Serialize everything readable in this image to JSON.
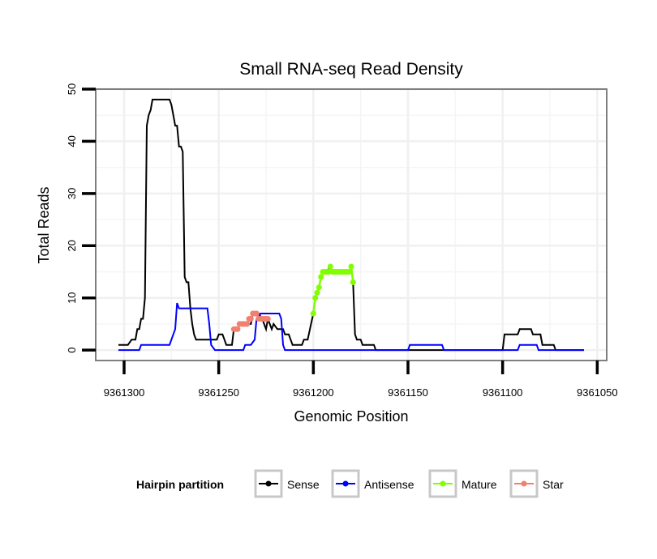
{
  "chart_data": {
    "type": "line",
    "title": "Small RNA-seq Read Density",
    "xlabel": "Genomic Position",
    "ylabel": "Total Reads",
    "xlim": [
      9361315,
      9361045
    ],
    "ylim": [
      -2,
      50
    ],
    "x_ticks": [
      9361300,
      9361250,
      9361200,
      9361150,
      9361100,
      9361050
    ],
    "x_tick_labels": [
      "9361300",
      "9361250",
      "9361200",
      "9361150",
      "9361100",
      "9361050"
    ],
    "y_ticks": [
      0,
      10,
      20,
      30,
      40,
      50
    ],
    "y_tick_labels": [
      "0",
      "10",
      "20",
      "30",
      "40",
      "50"
    ],
    "grid": true,
    "legend": {
      "title": "Hairpin partition",
      "position": "bottom",
      "entries": [
        {
          "label": "Sense",
          "color": "#000000"
        },
        {
          "label": "Antisense",
          "color": "#0000ff"
        },
        {
          "label": "Mature",
          "color": "#7fff00"
        },
        {
          "label": "Star",
          "color": "#f08070"
        }
      ]
    },
    "series": [
      {
        "name": "Sense",
        "color": "#000000",
        "style": "line",
        "points": [
          [
            9361303,
            1
          ],
          [
            9361298,
            1
          ],
          [
            9361296,
            2
          ],
          [
            9361294,
            2
          ],
          [
            9361293,
            4
          ],
          [
            9361292,
            4
          ],
          [
            9361291,
            6
          ],
          [
            9361290,
            6
          ],
          [
            9361289,
            10
          ],
          [
            9361288,
            43
          ],
          [
            9361287,
            45
          ],
          [
            9361286,
            46
          ],
          [
            9361285,
            48
          ],
          [
            9361276,
            48
          ],
          [
            9361275,
            47
          ],
          [
            9361274,
            45
          ],
          [
            9361273,
            43
          ],
          [
            9361272,
            43
          ],
          [
            9361271,
            39
          ],
          [
            9361270,
            39
          ],
          [
            9361269,
            38
          ],
          [
            9361268,
            14
          ],
          [
            9361267,
            13
          ],
          [
            9361266,
            13
          ],
          [
            9361265,
            8
          ],
          [
            9361264,
            5
          ],
          [
            9361263,
            3
          ],
          [
            9361262,
            2
          ],
          [
            9361251,
            2
          ],
          [
            9361250,
            3
          ],
          [
            9361248,
            3
          ],
          [
            9361247,
            2
          ],
          [
            9361246,
            1
          ],
          [
            9361243,
            1
          ],
          [
            9361242,
            4
          ],
          [
            9361240,
            4
          ],
          [
            9361239,
            5
          ],
          [
            9361233,
            5
          ],
          [
            9361232,
            7
          ],
          [
            9361229,
            7
          ],
          [
            9361227,
            6
          ],
          [
            9361225,
            4
          ],
          [
            9361224,
            6
          ],
          [
            9361222,
            4
          ],
          [
            9361221,
            5
          ],
          [
            9361219,
            4
          ],
          [
            9361216,
            4
          ],
          [
            9361215,
            3
          ],
          [
            9361213,
            3
          ],
          [
            9361212,
            2
          ],
          [
            9361211,
            1
          ],
          [
            9361208,
            1
          ],
          [
            9361206,
            1
          ],
          [
            9361205,
            2
          ],
          [
            9361203,
            2
          ],
          [
            9361200,
            7
          ],
          [
            9361199,
            10
          ],
          [
            9361198,
            11
          ],
          [
            9361197,
            12
          ],
          [
            9361196,
            14
          ],
          [
            9361195,
            15
          ],
          [
            9361194,
            15
          ],
          [
            9361193,
            15
          ],
          [
            9361191,
            16
          ],
          [
            9361190,
            15
          ],
          [
            9361186,
            15
          ],
          [
            9361183,
            15
          ],
          [
            9361182,
            15
          ],
          [
            9361181,
            15
          ],
          [
            9361180,
            16
          ],
          [
            9361179,
            13
          ],
          [
            9361178,
            3
          ],
          [
            9361177,
            2
          ],
          [
            9361175,
            2
          ],
          [
            9361174,
            1
          ],
          [
            9361168,
            1
          ],
          [
            9361167,
            0
          ],
          [
            9361100,
            0
          ],
          [
            9361099,
            3
          ],
          [
            9361092,
            3
          ],
          [
            9361091,
            4
          ],
          [
            9361085,
            4
          ],
          [
            9361084,
            3
          ],
          [
            9361080,
            3
          ],
          [
            9361079,
            1
          ],
          [
            9361073,
            1
          ],
          [
            9361072,
            0
          ],
          [
            9361057,
            0
          ]
        ]
      },
      {
        "name": "Antisense",
        "color": "#0000ff",
        "style": "line",
        "points": [
          [
            9361303,
            0
          ],
          [
            9361292,
            0
          ],
          [
            9361291,
            1
          ],
          [
            9361276,
            1
          ],
          [
            9361273,
            4
          ],
          [
            9361272,
            9
          ],
          [
            9361271,
            8
          ],
          [
            9361256,
            8
          ],
          [
            9361255,
            5
          ],
          [
            9361254,
            1
          ],
          [
            9361252,
            0
          ],
          [
            9361237,
            0
          ],
          [
            9361236,
            1
          ],
          [
            9361233,
            1
          ],
          [
            9361231,
            2
          ],
          [
            9361230,
            6
          ],
          [
            9361229,
            6
          ],
          [
            9361228,
            7
          ],
          [
            9361218,
            7
          ],
          [
            9361217,
            6
          ],
          [
            9361216,
            1
          ],
          [
            9361215,
            0
          ],
          [
            9361150,
            0
          ],
          [
            9361149,
            1
          ],
          [
            9361132,
            1
          ],
          [
            9361131,
            0
          ],
          [
            9361092,
            0
          ],
          [
            9361091,
            1
          ],
          [
            9361082,
            1
          ],
          [
            9361081,
            0
          ],
          [
            9361057,
            0
          ]
        ]
      },
      {
        "name": "Mature",
        "color": "#7fff00",
        "style": "points",
        "points": [
          [
            9361200,
            7
          ],
          [
            9361199,
            10
          ],
          [
            9361198,
            11
          ],
          [
            9361197,
            12
          ],
          [
            9361196,
            14
          ],
          [
            9361195,
            15
          ],
          [
            9361194,
            15
          ],
          [
            9361193,
            15
          ],
          [
            9361192,
            15
          ],
          [
            9361191,
            16
          ],
          [
            9361190,
            15
          ],
          [
            9361189,
            15
          ],
          [
            9361188,
            15
          ],
          [
            9361187,
            15
          ],
          [
            9361186,
            15
          ],
          [
            9361185,
            15
          ],
          [
            9361184,
            15
          ],
          [
            9361183,
            15
          ],
          [
            9361182,
            15
          ],
          [
            9361181,
            15
          ],
          [
            9361180,
            16
          ],
          [
            9361179,
            13
          ]
        ]
      },
      {
        "name": "Star",
        "color": "#f08070",
        "style": "points",
        "points": [
          [
            9361242,
            4
          ],
          [
            9361241,
            4
          ],
          [
            9361240,
            4
          ],
          [
            9361239,
            5
          ],
          [
            9361238,
            5
          ],
          [
            9361237,
            5
          ],
          [
            9361236,
            5
          ],
          [
            9361235,
            5
          ],
          [
            9361234,
            6
          ],
          [
            9361233,
            6
          ],
          [
            9361232,
            7
          ],
          [
            9361231,
            7
          ],
          [
            9361230,
            7
          ],
          [
            9361229,
            6
          ],
          [
            9361228,
            6
          ],
          [
            9361227,
            6
          ],
          [
            9361226,
            6
          ],
          [
            9361225,
            6
          ],
          [
            9361224,
            6
          ]
        ]
      }
    ]
  }
}
